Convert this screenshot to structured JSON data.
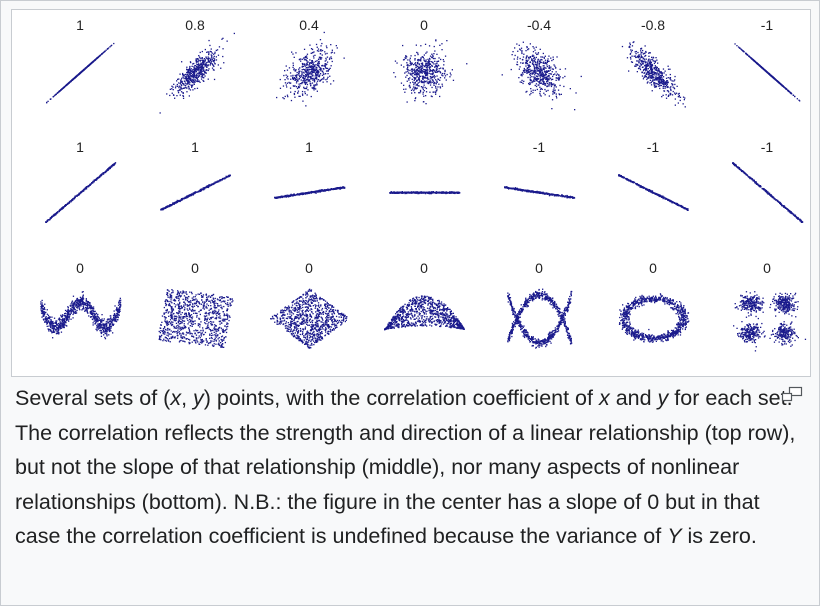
{
  "figure": {
    "rows": [
      {
        "name": "strength",
        "labels": [
          "1",
          "0.8",
          "0.4",
          "0",
          "-0.4",
          "-0.8",
          "-1"
        ]
      },
      {
        "name": "slope",
        "labels": [
          "1",
          "1",
          "1",
          "",
          "-1",
          "-1",
          "-1"
        ]
      },
      {
        "name": "nonlinear",
        "labels": [
          "0",
          "0",
          "0",
          "0",
          "0",
          "0",
          "0"
        ]
      }
    ],
    "point_color": "#1a1a8c"
  },
  "caption": {
    "part1": "Several sets of (",
    "var_x1": "x",
    "comma": ", ",
    "var_y1": "y",
    "part2": ") points, with the correlation coefficient of ",
    "var_x2": "x",
    "and": " and ",
    "var_y2": "y",
    "part3": " for each set. The correlation reflects the strength and direction of a linear relationship (top row), but not the slope of that relationship (middle), nor many aspects of nonlinear relationships (bottom). N.B.: the figure in the center has a slope of 0 but in that case the correlation coefficient is undefined because the variance of ",
    "var_Y": "Y",
    "part4": " is zero."
  },
  "icons": {
    "enlarge": "enlarge-icon"
  }
}
